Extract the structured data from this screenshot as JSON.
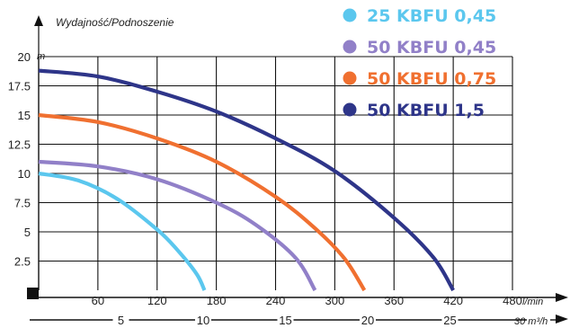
{
  "chart_data": {
    "type": "line",
    "title": "Wydajność/Podnoszenie",
    "ylabel": "m",
    "xlabel": "l/min",
    "x2label": "30 m³/h",
    "ylim": [
      0,
      20
    ],
    "xlim": [
      0,
      480
    ],
    "y_ticks": [
      "2.5",
      "5",
      "7.5",
      "10",
      "12.5",
      "15",
      "17.5",
      "20"
    ],
    "x_ticks": [
      "60",
      "120",
      "180",
      "240",
      "300",
      "360",
      "420",
      "480"
    ],
    "x2_ticks": [
      "5",
      "10",
      "15",
      "20",
      "25"
    ],
    "legend_position": "top-right",
    "series": [
      {
        "name": "25 KBFU 0,45",
        "color": "#5bc7ee",
        "x": [
          0,
          40,
          80,
          120,
          140,
          160,
          168
        ],
        "y": [
          10.0,
          9.4,
          7.8,
          5.2,
          3.5,
          1.4,
          0
        ]
      },
      {
        "name": "50 KBFU 0,45",
        "color": "#9180c8",
        "x": [
          0,
          60,
          120,
          180,
          220,
          260,
          280
        ],
        "y": [
          11.0,
          10.6,
          9.5,
          7.5,
          5.6,
          2.8,
          0
        ]
      },
      {
        "name": "50 KBFU 0,75",
        "color": "#f07030",
        "x": [
          0,
          60,
          120,
          180,
          240,
          280,
          310,
          330
        ],
        "y": [
          15.0,
          14.4,
          13.0,
          11.0,
          8.0,
          5.3,
          2.7,
          0
        ]
      },
      {
        "name": "50 KBFU 1,5",
        "color": "#2e3589",
        "x": [
          0,
          60,
          120,
          180,
          240,
          300,
          360,
          400,
          420
        ],
        "y": [
          18.8,
          18.3,
          17.0,
          15.3,
          13.0,
          10.2,
          6.2,
          2.8,
          0
        ]
      }
    ]
  }
}
